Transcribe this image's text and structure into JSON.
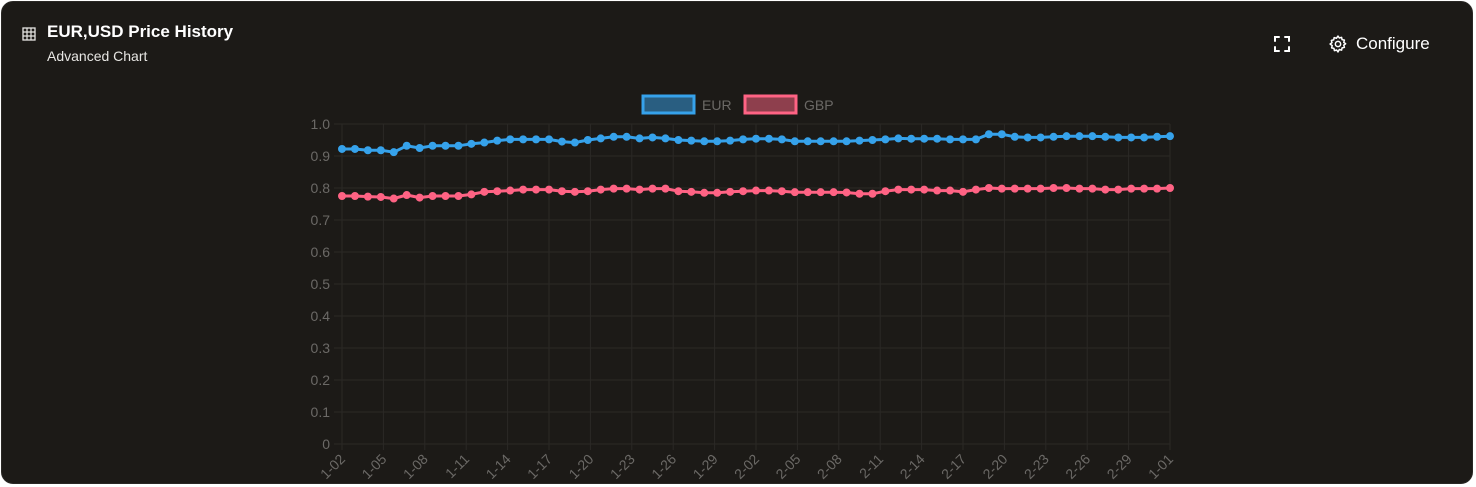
{
  "header": {
    "title": "EUR,USD Price History",
    "subtitle": "Advanced Chart",
    "table_icon": "table-icon",
    "fullscreen_icon": "fullscreen-icon",
    "configure_icon": "gear-icon",
    "configure_label": "Configure"
  },
  "colors": {
    "background": "#1c1a17",
    "text": "#ffffff",
    "axis_text": "#6b6966",
    "grid": "#2b2926",
    "eur": "#36a2eb",
    "gbp": "#ff6384"
  },
  "chart_data": {
    "type": "line",
    "legend_position": "top-center",
    "grid": true,
    "ylim": [
      0,
      1.0
    ],
    "y_ticks": [
      "1.0",
      "0.9",
      "0.8",
      "0.7",
      "0.6",
      "0.5",
      "0.4",
      "0.3",
      "0.2",
      "0.1",
      "0"
    ],
    "x_tick_labels": [
      "1-02",
      "1-05",
      "1-08",
      "1-11",
      "1-14",
      "1-17",
      "1-20",
      "1-23",
      "1-26",
      "1-29",
      "2-02",
      "2-05",
      "2-08",
      "2-11",
      "2-14",
      "2-17",
      "2-20",
      "2-23",
      "2-26",
      "2-29",
      "1-01"
    ],
    "series": [
      {
        "name": "EUR",
        "color": "#36a2eb",
        "values": [
          0.922,
          0.922,
          0.918,
          0.918,
          0.912,
          0.932,
          0.925,
          0.932,
          0.932,
          0.932,
          0.938,
          0.942,
          0.948,
          0.952,
          0.952,
          0.952,
          0.952,
          0.945,
          0.942,
          0.95,
          0.955,
          0.96,
          0.96,
          0.955,
          0.958,
          0.955,
          0.95,
          0.948,
          0.946,
          0.946,
          0.948,
          0.952,
          0.954,
          0.954,
          0.952,
          0.946,
          0.946,
          0.946,
          0.946,
          0.946,
          0.948,
          0.95,
          0.952,
          0.955,
          0.954,
          0.954,
          0.954,
          0.952,
          0.952,
          0.952,
          0.968,
          0.968,
          0.96,
          0.958,
          0.958,
          0.96,
          0.962,
          0.962,
          0.962,
          0.96,
          0.958,
          0.958,
          0.958,
          0.96,
          0.962
        ]
      },
      {
        "name": "GBP",
        "color": "#ff6384",
        "values": [
          0.775,
          0.775,
          0.773,
          0.772,
          0.767,
          0.778,
          0.77,
          0.775,
          0.775,
          0.775,
          0.78,
          0.788,
          0.79,
          0.792,
          0.795,
          0.795,
          0.795,
          0.79,
          0.788,
          0.79,
          0.795,
          0.798,
          0.798,
          0.795,
          0.798,
          0.798,
          0.79,
          0.788,
          0.785,
          0.785,
          0.788,
          0.79,
          0.792,
          0.792,
          0.79,
          0.787,
          0.787,
          0.787,
          0.787,
          0.786,
          0.782,
          0.782,
          0.79,
          0.795,
          0.795,
          0.795,
          0.792,
          0.792,
          0.788,
          0.795,
          0.8,
          0.798,
          0.798,
          0.798,
          0.798,
          0.8,
          0.8,
          0.798,
          0.798,
          0.795,
          0.795,
          0.798,
          0.798,
          0.798,
          0.8
        ]
      }
    ]
  }
}
